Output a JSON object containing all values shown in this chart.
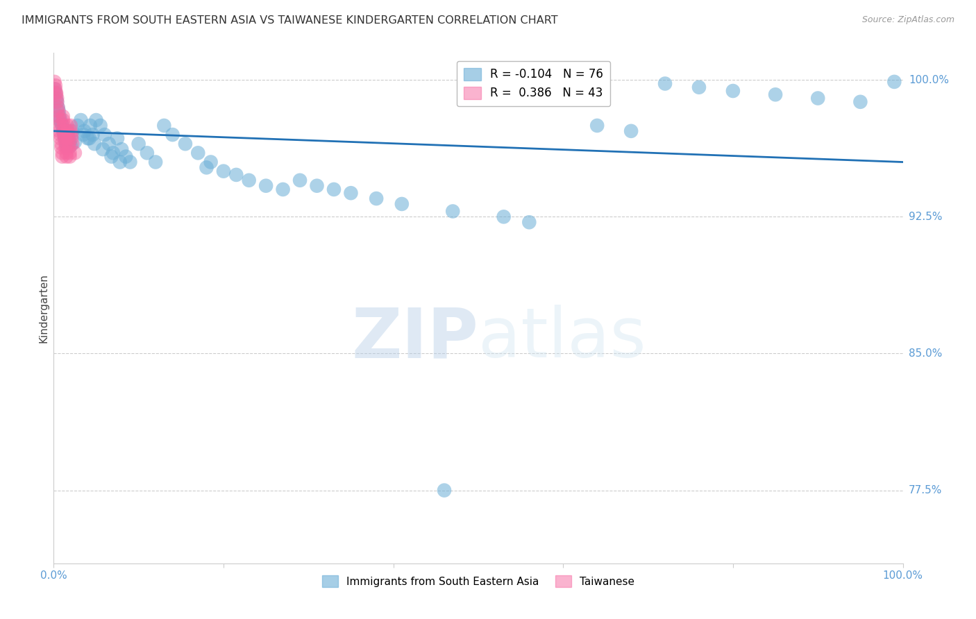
{
  "title": "IMMIGRANTS FROM SOUTH EASTERN ASIA VS TAIWANESE KINDERGARTEN CORRELATION CHART",
  "source": "Source: ZipAtlas.com",
  "ylabel": "Kindergarten",
  "ytick_labels": [
    "100.0%",
    "92.5%",
    "85.0%",
    "77.5%"
  ],
  "ytick_values": [
    1.0,
    0.925,
    0.85,
    0.775
  ],
  "ylim_min": 0.735,
  "ylim_max": 1.015,
  "xlim_min": 0.0,
  "xlim_max": 1.0,
  "legend_blue_r": "-0.104",
  "legend_blue_n": "76",
  "legend_pink_r": "0.386",
  "legend_pink_n": "43",
  "legend_label_blue": "Immigrants from South Eastern Asia",
  "legend_label_pink": "Taiwanese",
  "watermark": "ZIPatlas",
  "blue_color": "#6baed6",
  "blue_line_color": "#2171b5",
  "pink_color": "#f768a1",
  "trend_y_start": 0.972,
  "trend_y_end": 0.955,
  "background_color": "#ffffff",
  "grid_color": "#cccccc",
  "tick_color": "#5b9bd5",
  "title_color": "#333333",
  "source_color": "#999999",
  "blue_x": [
    0.001,
    0.002,
    0.003,
    0.004,
    0.005,
    0.006,
    0.007,
    0.008,
    0.009,
    0.01,
    0.011,
    0.012,
    0.013,
    0.014,
    0.015,
    0.016,
    0.017,
    0.018,
    0.019,
    0.02,
    0.022,
    0.025,
    0.028,
    0.032,
    0.036,
    0.04,
    0.043,
    0.046,
    0.05,
    0.055,
    0.06,
    0.065,
    0.07,
    0.075,
    0.08,
    0.085,
    0.09,
    0.1,
    0.11,
    0.12,
    0.13,
    0.14,
    0.155,
    0.17,
    0.185,
    0.2,
    0.215,
    0.23,
    0.25,
    0.27,
    0.29,
    0.31,
    0.33,
    0.35,
    0.38,
    0.41,
    0.47,
    0.53,
    0.56,
    0.64,
    0.68,
    0.72,
    0.76,
    0.8,
    0.85,
    0.9,
    0.95,
    0.99,
    0.035,
    0.042,
    0.048,
    0.058,
    0.068,
    0.078,
    0.18,
    0.46
  ],
  "blue_y": [
    0.995,
    0.993,
    0.99,
    0.988,
    0.985,
    0.983,
    0.98,
    0.978,
    0.976,
    0.975,
    0.972,
    0.97,
    0.968,
    0.966,
    0.964,
    0.972,
    0.97,
    0.968,
    0.966,
    0.964,
    0.972,
    0.966,
    0.975,
    0.978,
    0.972,
    0.968,
    0.975,
    0.97,
    0.978,
    0.975,
    0.97,
    0.965,
    0.96,
    0.968,
    0.962,
    0.958,
    0.955,
    0.965,
    0.96,
    0.955,
    0.975,
    0.97,
    0.965,
    0.96,
    0.955,
    0.95,
    0.948,
    0.945,
    0.942,
    0.94,
    0.945,
    0.942,
    0.94,
    0.938,
    0.935,
    0.932,
    0.928,
    0.925,
    0.922,
    0.975,
    0.972,
    0.998,
    0.996,
    0.994,
    0.992,
    0.99,
    0.988,
    0.999,
    0.97,
    0.968,
    0.965,
    0.962,
    0.958,
    0.955,
    0.952,
    0.775
  ],
  "pink_x": [
    0.001,
    0.002,
    0.002,
    0.003,
    0.003,
    0.004,
    0.004,
    0.005,
    0.005,
    0.006,
    0.006,
    0.007,
    0.007,
    0.008,
    0.008,
    0.009,
    0.009,
    0.01,
    0.01,
    0.011,
    0.011,
    0.012,
    0.012,
    0.013,
    0.013,
    0.014,
    0.014,
    0.015,
    0.015,
    0.016,
    0.016,
    0.017,
    0.017,
    0.018,
    0.018,
    0.019,
    0.019,
    0.02,
    0.02,
    0.021,
    0.021,
    0.022,
    0.025
  ],
  "pink_y": [
    0.999,
    0.997,
    0.995,
    0.993,
    0.992,
    0.99,
    0.988,
    0.985,
    0.983,
    0.98,
    0.978,
    0.975,
    0.972,
    0.97,
    0.968,
    0.965,
    0.963,
    0.96,
    0.958,
    0.98,
    0.978,
    0.975,
    0.972,
    0.97,
    0.968,
    0.965,
    0.963,
    0.96,
    0.958,
    0.975,
    0.972,
    0.97,
    0.968,
    0.965,
    0.963,
    0.96,
    0.958,
    0.975,
    0.972,
    0.97,
    0.968,
    0.965,
    0.96
  ]
}
